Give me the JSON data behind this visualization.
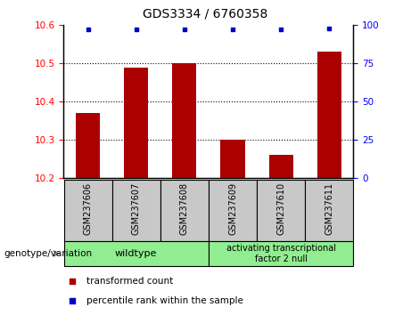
{
  "title": "GDS3334 / 6760358",
  "samples": [
    "GSM237606",
    "GSM237607",
    "GSM237608",
    "GSM237609",
    "GSM237610",
    "GSM237611"
  ],
  "bar_values": [
    10.37,
    10.49,
    10.5,
    10.3,
    10.26,
    10.53
  ],
  "percentile_values": [
    97,
    97,
    97,
    97,
    97,
    98
  ],
  "ylim_left": [
    10.2,
    10.6
  ],
  "ylim_right": [
    0,
    100
  ],
  "yticks_left": [
    10.2,
    10.3,
    10.4,
    10.5,
    10.6
  ],
  "yticks_right": [
    0,
    25,
    50,
    75,
    100
  ],
  "bar_color": "#aa0000",
  "dot_color": "#0000cc",
  "wildtype_label": "wildtype",
  "atf2null_label": "activating transcriptional\nfactor 2 null",
  "group_bg_color": "#90ee90",
  "xlabel_area_bg": "#c8c8c8",
  "legend_bar_label": "transformed count",
  "legend_dot_label": "percentile rank within the sample",
  "genotype_label": "genotype/variation",
  "bar_width": 0.5
}
